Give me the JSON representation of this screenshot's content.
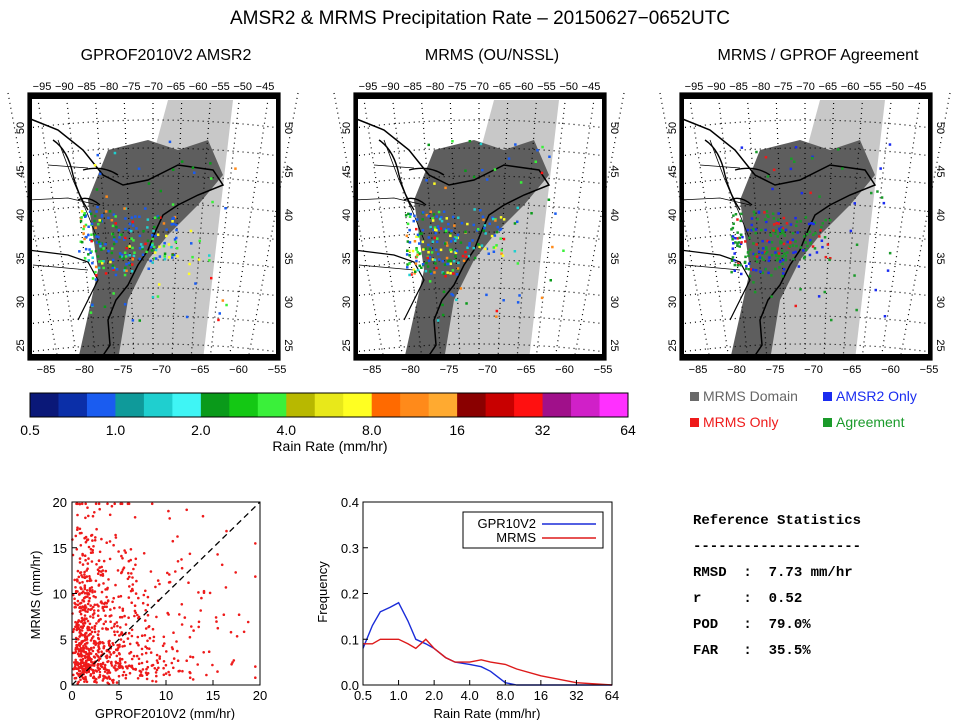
{
  "title": "AMSR2 & MRMS Precipitation Rate – 20150627−0652UTC",
  "panels": [
    {
      "title": "GPROF2010V2 AMSR2"
    },
    {
      "title": "MRMS (OU/NSSL)"
    },
    {
      "title": "MRMS / GPROF Agreement"
    }
  ],
  "map": {
    "top_lon_labels": [
      "−95",
      "−90",
      "−85",
      "−80",
      "−75",
      "−70",
      "−65",
      "−60",
      "−55",
      "−50",
      "−45"
    ],
    "bottom_lon_labels": [
      "−85",
      "−80",
      "−75",
      "−70",
      "−65",
      "−60",
      "−55"
    ],
    "lat_labels": [
      "50",
      "45",
      "40",
      "35",
      "30",
      "25"
    ]
  },
  "colorbar": {
    "colors": [
      "#0a1878",
      "#0b2fa8",
      "#1a5cf0",
      "#0f9a9a",
      "#1fcfcf",
      "#3ff5f5",
      "#0a9a1a",
      "#14c814",
      "#3af03a",
      "#b8b800",
      "#e8e81a",
      "#ffff22",
      "#ff6a00",
      "#ff8a1a",
      "#ffaa30",
      "#8a0000",
      "#c80000",
      "#ff1010",
      "#a0108a",
      "#d020c8",
      "#ff30ff"
    ],
    "tick_labels": [
      "0.5",
      "1.0",
      "2.0",
      "4.0",
      "8.0",
      "16",
      "32",
      "64"
    ],
    "label": "Rain Rate (mm/hr)"
  },
  "agreement_legend": [
    {
      "label": "MRMS Domain",
      "color": "#6a6a6a"
    },
    {
      "label": "AMSR2 Only",
      "color": "#1a2cf0"
    },
    {
      "label": "MRMS Only",
      "color": "#ee1a1a"
    },
    {
      "label": "Agreement",
      "color": "#1a9a2a"
    }
  ],
  "stats": {
    "title": "Reference Statistics",
    "rule": "--------------------",
    "rows": [
      "RMSD  :  7.73 mm/hr",
      "r     :  0.52",
      "POD   :  79.0%",
      "FAR   :  35.5%"
    ]
  },
  "chart_data": [
    {
      "type": "scatter",
      "xlabel": "GPROF2010V2 (mm/hr)",
      "ylabel": "MRMS (mm/hr)",
      "xlim": [
        0,
        20
      ],
      "ylim": [
        0,
        20
      ],
      "x_ticks": [
        "0",
        "5",
        "10",
        "15",
        "20"
      ],
      "y_ticks": [
        "0",
        "5",
        "10",
        "15",
        "20"
      ],
      "one_to_one_line": true,
      "point_color": "#ee1a1a"
    },
    {
      "type": "line",
      "xlabel": "Rain Rate (mm/hr)",
      "ylabel": "Frequency",
      "x_ticks": [
        "0.5",
        "1.0",
        "2.0",
        "4.0",
        "8.0",
        "16",
        "32",
        "64"
      ],
      "y_ticks": [
        "0.0",
        "0.1",
        "0.2",
        "0.3",
        "0.4"
      ],
      "ylim": [
        0,
        0.4
      ],
      "x": [
        0.5,
        0.6,
        0.7,
        0.85,
        1.0,
        1.2,
        1.4,
        1.7,
        2.0,
        2.5,
        3.0,
        4.0,
        5.0,
        6.0,
        8.0,
        10,
        16,
        32,
        64
      ],
      "series": [
        {
          "name": "GPR10V2",
          "color": "#1a2cd8",
          "values": [
            0.08,
            0.13,
            0.16,
            0.17,
            0.18,
            0.14,
            0.1,
            0.09,
            0.08,
            0.06,
            0.05,
            0.045,
            0.04,
            0.03,
            0.005,
            0.0,
            0.0,
            0.0,
            0.0
          ]
        },
        {
          "name": "MRMS",
          "color": "#dd1a1a",
          "values": [
            0.09,
            0.09,
            0.1,
            0.1,
            0.1,
            0.09,
            0.08,
            0.1,
            0.08,
            0.06,
            0.05,
            0.05,
            0.055,
            0.05,
            0.045,
            0.035,
            0.02,
            0.005,
            0.0
          ]
        }
      ],
      "legend_position": "top-right"
    }
  ]
}
